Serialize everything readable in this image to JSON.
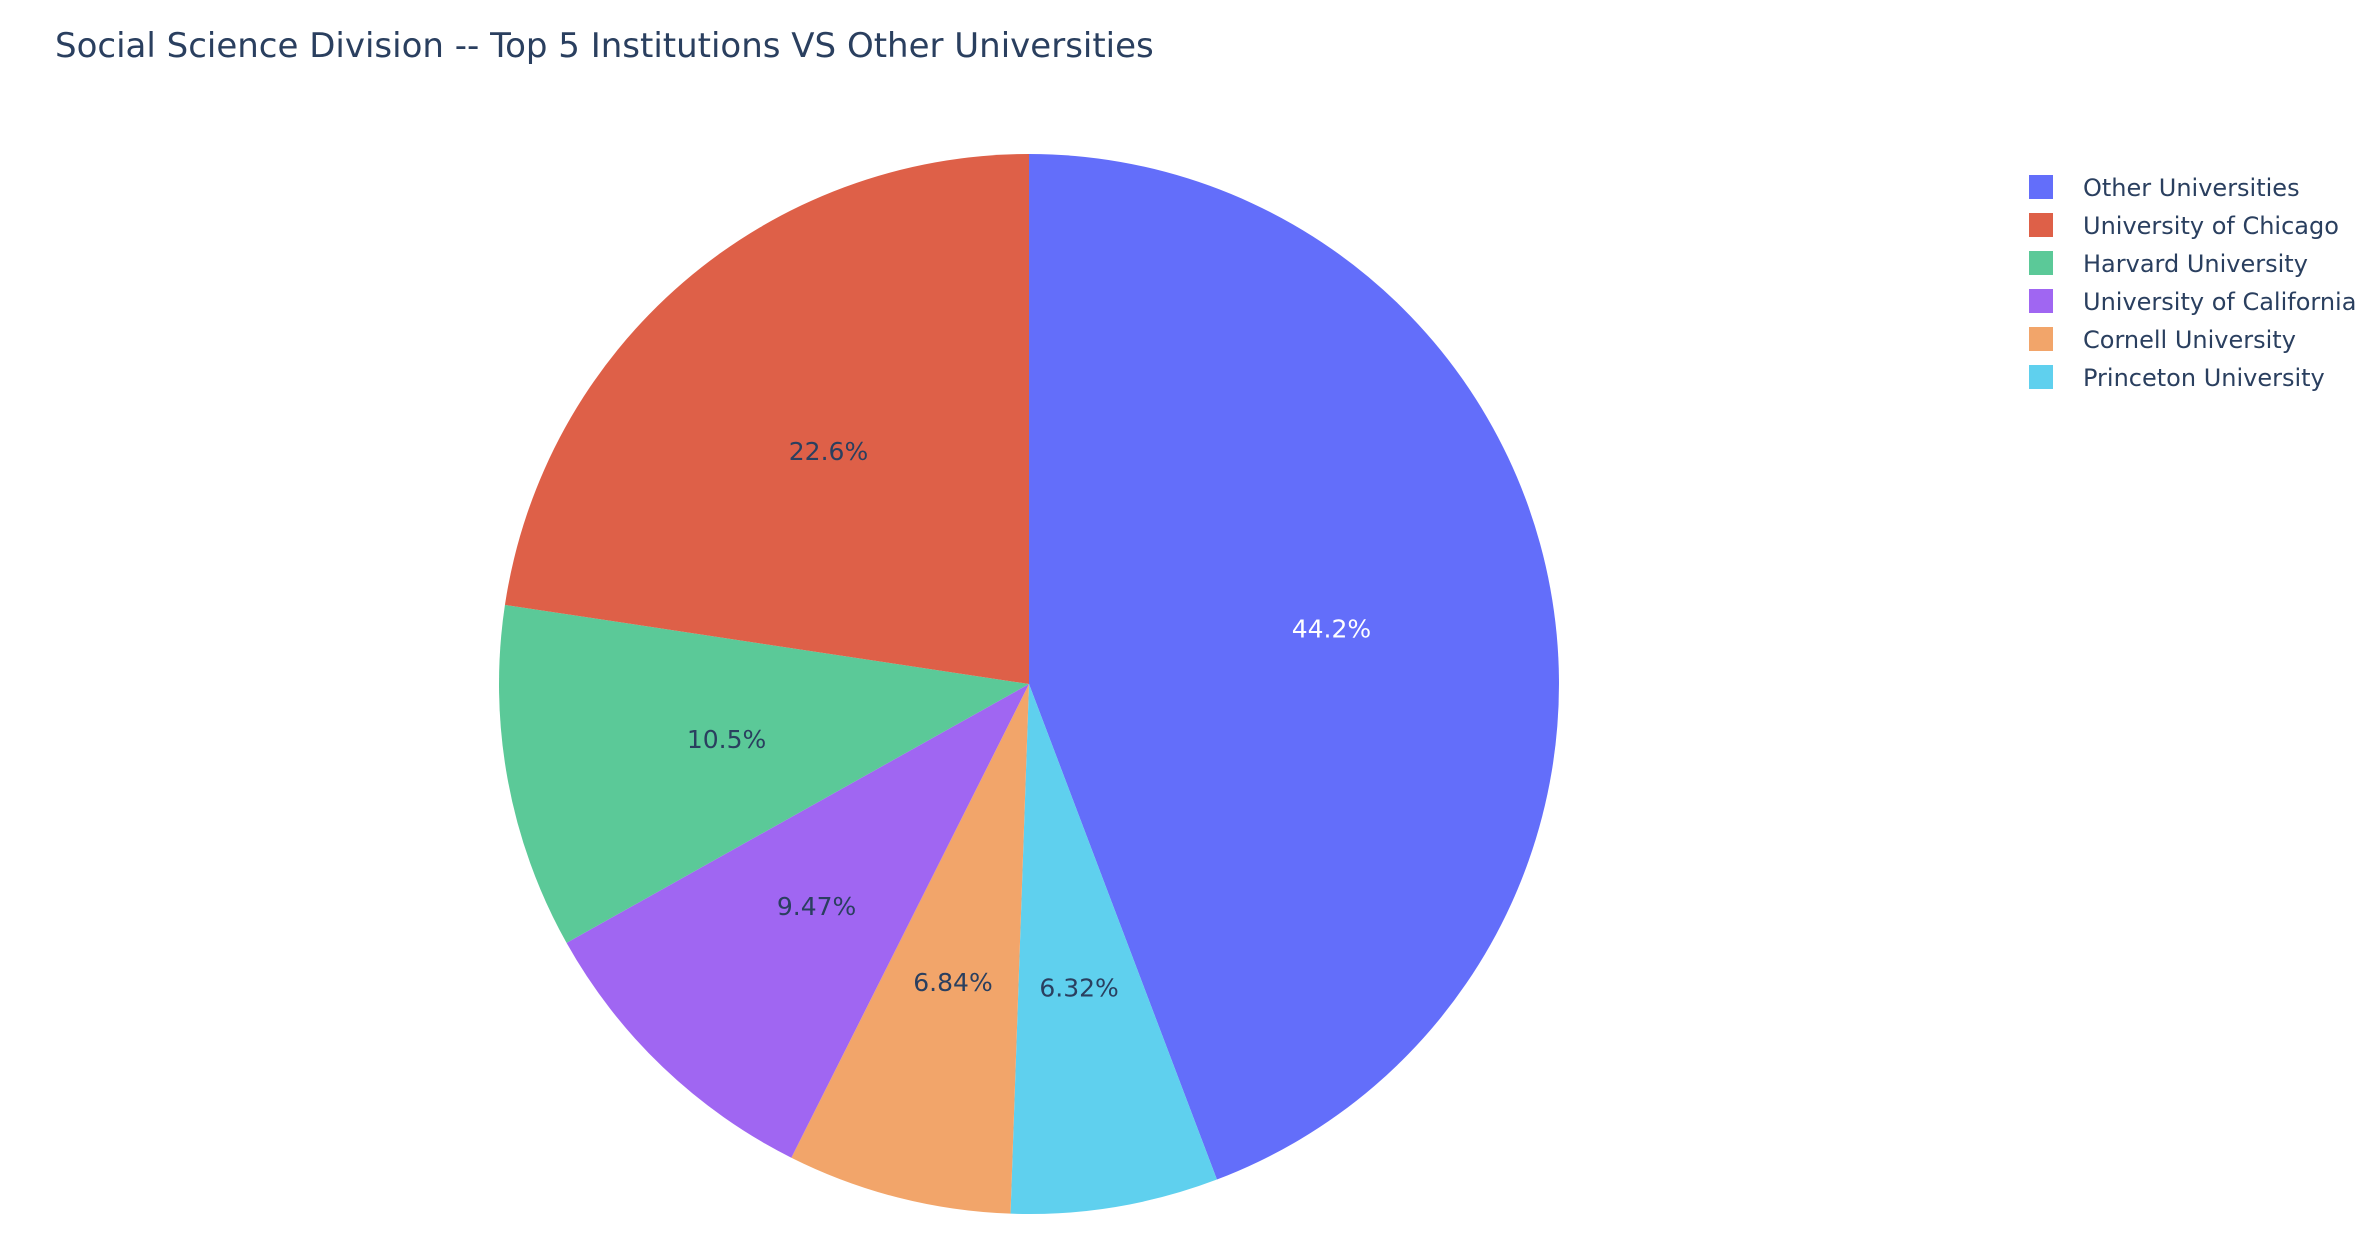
{
  "chart_data": {
    "type": "pie",
    "title": "Social Science Division -- Top 5 Institutions VS Other Universities",
    "direction": "clockwise",
    "start_angle_deg": 90,
    "sort": "none",
    "slices": [
      {
        "label": "Other Universities",
        "value": 44.2,
        "display": "44.2%",
        "color": "#636efa",
        "text_color": "#ffffff"
      },
      {
        "label": "Princeton University",
        "value": 6.32,
        "display": "6.32%",
        "color": "#5fd0ee",
        "text_color": "#2a3f5f"
      },
      {
        "label": "Cornell University",
        "value": 6.84,
        "display": "6.84%",
        "color": "#f2a56a",
        "text_color": "#2a3f5f"
      },
      {
        "label": "University of California",
        "value": 9.47,
        "display": "9.47%",
        "color": "#a066f2",
        "text_color": "#2a3f5f"
      },
      {
        "label": "Harvard University",
        "value": 10.5,
        "display": "10.5%",
        "color": "#5bc998",
        "text_color": "#2a3f5f"
      },
      {
        "label": "University of Chicago",
        "value": 22.6,
        "display": "22.6%",
        "color": "#de6048",
        "text_color": "#2a3f5f"
      }
    ],
    "legend": {
      "placement": "top-right",
      "order": [
        "Other Universities",
        "University of Chicago",
        "Harvard University",
        "University of California",
        "Cornell University",
        "Princeton University"
      ]
    },
    "colors": {
      "title": "#2a3f5f",
      "legend_text": "#2a3f5f",
      "slice_border": "#ffffff",
      "background": "#ffffff"
    }
  }
}
